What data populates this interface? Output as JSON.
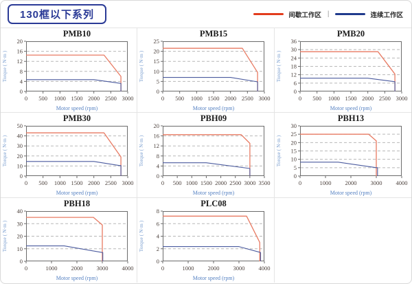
{
  "header": {
    "title": "130框以下系列",
    "legend_separator": "|",
    "legend": [
      {
        "label": "间歇工作区",
        "color": "#e23c1d"
      },
      {
        "label": "连续工作区",
        "color": "#1f3a8c"
      }
    ]
  },
  "colors": {
    "legend_red": "#e23c1d",
    "legend_blue": "#1f3a8c",
    "line_red": "#e87a62",
    "line_blue": "#4a5a9e",
    "grid_line": "#b8b8b8",
    "frame": "#6a6a6a",
    "tick_text": "#4a3f3a",
    "chart_title": "#1b1b1b",
    "xlabel_text": "#5581c2",
    "ylabel_text": "#7b9fd0"
  },
  "chart_data": [
    {
      "type": "line",
      "title": "PMB10",
      "xlabel": "Motor speed (rpm)",
      "ylabel": "Torque ( N·m )",
      "xlim": [
        0,
        3000
      ],
      "ylim": [
        0,
        20
      ],
      "xticks": [
        0,
        500,
        1000,
        1500,
        2000,
        2500,
        3000
      ],
      "yticks": [
        0,
        4,
        8,
        12,
        16,
        20
      ],
      "series": [
        {
          "name": "间歇工作区",
          "points": [
            [
              0,
              14.5
            ],
            [
              2300,
              14.5
            ],
            [
              2800,
              6
            ],
            [
              2800,
              0
            ]
          ]
        },
        {
          "name": "连续工作区",
          "points": [
            [
              0,
              4.7
            ],
            [
              2000,
              4.7
            ],
            [
              2800,
              3.2
            ],
            [
              2800,
              0
            ]
          ]
        }
      ]
    },
    {
      "type": "line",
      "title": "PMB15",
      "xlabel": "Motor speed (rpm)",
      "ylabel": "Torque ( N·m )",
      "xlim": [
        0,
        3000
      ],
      "ylim": [
        0,
        25
      ],
      "xticks": [
        0,
        500,
        1000,
        1500,
        2000,
        2500,
        3000
      ],
      "yticks": [
        0,
        5,
        10,
        15,
        20,
        25
      ],
      "series": [
        {
          "name": "间歇工作区",
          "points": [
            [
              0,
              21.5
            ],
            [
              2350,
              21.5
            ],
            [
              2800,
              9.5
            ],
            [
              2800,
              0
            ]
          ]
        },
        {
          "name": "连续工作区",
          "points": [
            [
              0,
              7
            ],
            [
              2000,
              7
            ],
            [
              2800,
              4.8
            ],
            [
              2800,
              0
            ]
          ]
        }
      ]
    },
    {
      "type": "line",
      "title": "PMB20",
      "xlabel": "Motor speed (rpm)",
      "ylabel": "Torque ( N·m )",
      "xlim": [
        0,
        3000
      ],
      "ylim": [
        0,
        36
      ],
      "xticks": [
        0,
        500,
        1000,
        1500,
        2000,
        2500,
        3000
      ],
      "yticks": [
        0,
        6,
        12,
        18,
        24,
        30,
        36
      ],
      "series": [
        {
          "name": "间歇工作区",
          "points": [
            [
              0,
              28.5
            ],
            [
              2300,
              28.5
            ],
            [
              2800,
              12.5
            ],
            [
              2800,
              0
            ]
          ]
        },
        {
          "name": "连续工作区",
          "points": [
            [
              0,
              9.5
            ],
            [
              2000,
              9.5
            ],
            [
              2800,
              7
            ],
            [
              2800,
              0
            ]
          ]
        }
      ]
    },
    {
      "type": "line",
      "title": "PMB30",
      "xlabel": "Motor speed (rpm)",
      "ylabel": "Torque ( N·m )",
      "xlim": [
        0,
        3000
      ],
      "ylim": [
        0,
        50
      ],
      "xticks": [
        0,
        500,
        1000,
        1500,
        2000,
        2500,
        3000
      ],
      "yticks": [
        0,
        10,
        20,
        30,
        40,
        50
      ],
      "series": [
        {
          "name": "间歇工作区",
          "points": [
            [
              0,
              43
            ],
            [
              2300,
              43
            ],
            [
              2800,
              19
            ],
            [
              2800,
              0
            ]
          ]
        },
        {
          "name": "连续工作区",
          "points": [
            [
              0,
              14.5
            ],
            [
              2000,
              14.5
            ],
            [
              2750,
              10.5
            ],
            [
              2800,
              10.5
            ],
            [
              2800,
              0
            ]
          ]
        }
      ]
    },
    {
      "type": "line",
      "title": "PBH09",
      "xlabel": "Motor speed (rpm)",
      "ylabel": "Torque ( N·m )",
      "xlim": [
        0,
        3500
      ],
      "ylim": [
        0,
        20
      ],
      "xticks": [
        0,
        500,
        1000,
        1500,
        2000,
        2500,
        3000,
        3500
      ],
      "yticks": [
        0,
        4,
        8,
        12,
        16,
        20
      ],
      "series": [
        {
          "name": "间歇工作区",
          "points": [
            [
              0,
              16.5
            ],
            [
              2700,
              16.5
            ],
            [
              3000,
              13
            ],
            [
              3000,
              0
            ]
          ]
        },
        {
          "name": "连续工作区",
          "points": [
            [
              0,
              5.3
            ],
            [
              1500,
              5.3
            ],
            [
              3000,
              3
            ],
            [
              3000,
              0
            ]
          ]
        }
      ]
    },
    {
      "type": "line",
      "title": "PBH13",
      "xlabel": "Motor speed (rpm)",
      "ylabel": "Torque ( N·m )",
      "xlim": [
        0,
        4000
      ],
      "ylim": [
        0,
        30
      ],
      "xticks": [
        0,
        1000,
        2000,
        3000,
        4000
      ],
      "yticks": [
        0,
        5,
        10,
        15,
        20,
        25,
        30
      ],
      "series": [
        {
          "name": "间歇工作区",
          "points": [
            [
              0,
              25
            ],
            [
              2700,
              25
            ],
            [
              3000,
              21
            ],
            [
              3000,
              0
            ]
          ]
        },
        {
          "name": "连续工作区",
          "points": [
            [
              0,
              8.3
            ],
            [
              1500,
              8.3
            ],
            [
              3000,
              5
            ],
            [
              3050,
              5
            ],
            [
              3050,
              0
            ]
          ]
        }
      ]
    },
    {
      "type": "line",
      "title": "PBH18",
      "xlabel": "Motor speed (rpm)",
      "ylabel": "Torque ( N·m )",
      "xlim": [
        0,
        4000
      ],
      "ylim": [
        0,
        40
      ],
      "xticks": [
        0,
        1000,
        2000,
        3000,
        4000
      ],
      "yticks": [
        0,
        10,
        20,
        30,
        40
      ],
      "series": [
        {
          "name": "间歇工作区",
          "points": [
            [
              0,
              35
            ],
            [
              2650,
              35
            ],
            [
              3000,
              29
            ],
            [
              3000,
              0
            ]
          ]
        },
        {
          "name": "连续工作区",
          "points": [
            [
              0,
              12.3
            ],
            [
              1500,
              12.3
            ],
            [
              3000,
              7
            ],
            [
              3020,
              7
            ],
            [
              3020,
              0
            ]
          ]
        }
      ]
    },
    {
      "type": "line",
      "title": "PLC08",
      "xlabel": "Motor speed (rpm)",
      "ylabel": "Torque ( N·m )",
      "xlim": [
        0,
        4000
      ],
      "ylim": [
        0,
        8
      ],
      "xticks": [
        0,
        1000,
        2000,
        3000,
        4000
      ],
      "yticks": [
        0,
        2,
        4,
        6,
        8
      ],
      "series": [
        {
          "name": "间歇工作区",
          "points": [
            [
              0,
              7.2
            ],
            [
              3300,
              7.2
            ],
            [
              3820,
              3
            ],
            [
              3820,
              0
            ]
          ]
        },
        {
          "name": "连续工作区",
          "points": [
            [
              0,
              2.35
            ],
            [
              3000,
              2.35
            ],
            [
              3850,
              1.4
            ],
            [
              3850,
              0
            ]
          ]
        }
      ]
    }
  ]
}
